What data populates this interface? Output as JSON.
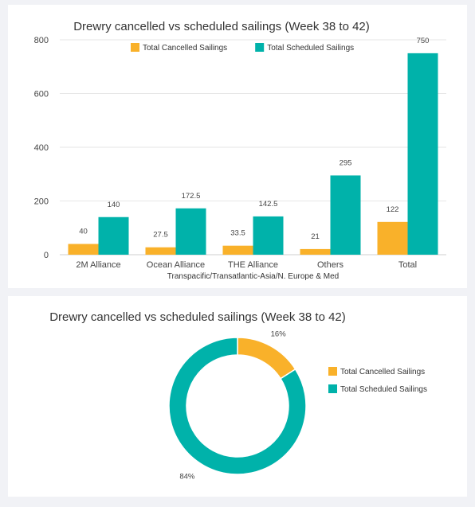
{
  "colors": {
    "cancelled": "#f9b12a",
    "scheduled": "#00b2aa"
  },
  "chart_data": [
    {
      "type": "bar",
      "title": "Drewry cancelled vs scheduled sailings (Week 38 to 42)",
      "categories": [
        "2M Alliance",
        "Ocean Alliance",
        "THE Alliance",
        "Others",
        "Total"
      ],
      "series": [
        {
          "name": "Total Cancelled Sailings",
          "values": [
            40,
            27.5,
            33.5,
            21,
            122
          ],
          "color": "#f9b12a"
        },
        {
          "name": "Total Scheduled Sailings",
          "values": [
            140,
            172.5,
            142.5,
            295,
            750
          ],
          "color": "#00b2aa"
        }
      ],
      "data_labels": [
        [
          "40",
          "27.5",
          "33.5",
          "21",
          "122"
        ],
        [
          "140",
          "172.5",
          "142.5",
          "295",
          "750"
        ]
      ],
      "xlabel": "Transpacific/Transatlantic-Asia/N. Europe & Med",
      "ylabel": "",
      "ylim": [
        0,
        800
      ],
      "yticks": [
        0,
        200,
        400,
        600,
        800
      ],
      "grid": true,
      "legend": "top-center"
    },
    {
      "type": "pie",
      "subtype": "donut",
      "title": "Drewry cancelled vs scheduled sailings (Week 38 to 42)",
      "labels": [
        "Total Cancelled Sailings",
        "Total Scheduled Sailings"
      ],
      "values": [
        16,
        84
      ],
      "value_labels": [
        "16%",
        "84%"
      ],
      "colors": [
        "#f9b12a",
        "#00b2aa"
      ],
      "legend": "right"
    }
  ]
}
